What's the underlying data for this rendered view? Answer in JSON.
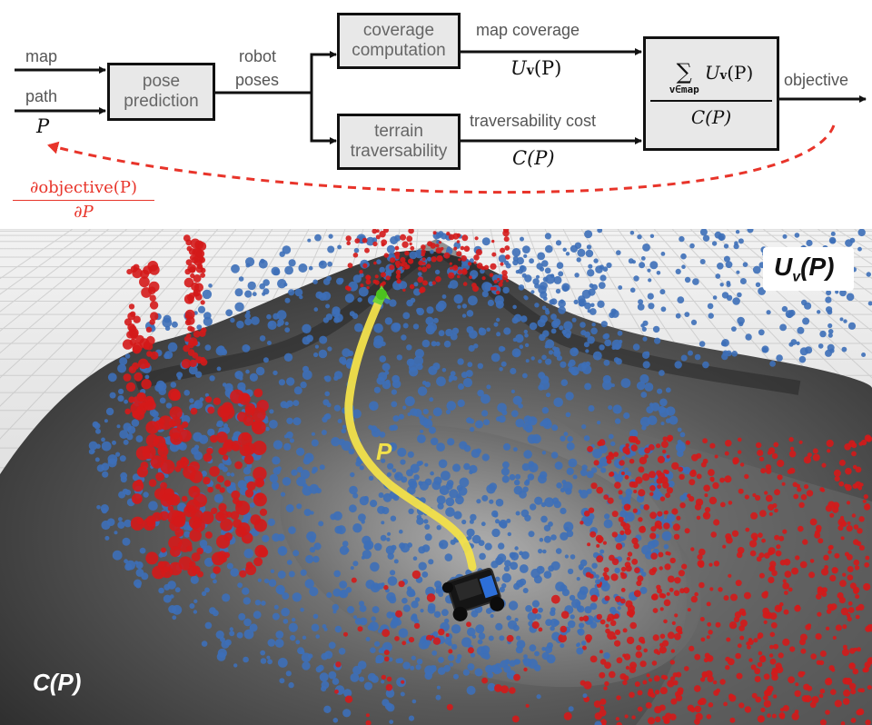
{
  "inputs": {
    "map": "map",
    "path": "path",
    "path_symbol": "P"
  },
  "blocks": {
    "pose_prediction": [
      "pose",
      "prediction"
    ],
    "coverage_computation": [
      "coverage",
      "computation"
    ],
    "terrain_traversability": [
      "terrain",
      "traversability"
    ]
  },
  "edges": {
    "robot_poses": [
      "robot",
      "poses"
    ],
    "map_coverage": "map coverage",
    "map_coverage_symbol": "U",
    "map_coverage_sub": "v",
    "map_coverage_arg": "(P)",
    "traversability_cost": "traversability cost",
    "traversability_symbol": "C(P)",
    "objective": "objective"
  },
  "objective_box": {
    "sum_symbol": "∑",
    "sum_subscript": "v∈map",
    "numerator_term": "U",
    "numerator_sub": "v",
    "numerator_arg": "(P)",
    "denominator": "C(P)"
  },
  "gradient": {
    "numerator": "∂objective(P)",
    "denominator": "∂P",
    "color": "#e8342a"
  },
  "scene": {
    "label_top_right": "U",
    "label_top_right_sub": "v",
    "label_top_right_arg": "(P)",
    "label_path": "P",
    "label_bottom_left": "C(P)",
    "colors": {
      "covered_points": "#3d6fb8",
      "uncovered_points": "#d41a1a",
      "path": "#f2e04a",
      "terrain": "#4a4a4a"
    }
  }
}
